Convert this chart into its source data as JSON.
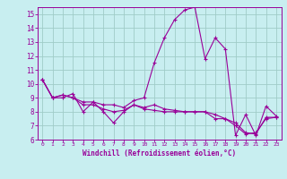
{
  "title": "",
  "xlabel": "Windchill (Refroidissement éolien,°C)",
  "xlim": [
    -0.5,
    23.5
  ],
  "ylim": [
    6,
    15.5
  ],
  "yticks": [
    6,
    7,
    8,
    9,
    10,
    11,
    12,
    13,
    14,
    15
  ],
  "xticks": [
    0,
    1,
    2,
    3,
    4,
    5,
    6,
    7,
    8,
    9,
    10,
    11,
    12,
    13,
    14,
    15,
    16,
    17,
    18,
    19,
    20,
    21,
    22,
    23
  ],
  "bg_color": "#c8eef0",
  "grid_color": "#a0ccc8",
  "line_color": "#990099",
  "series": [
    [
      10.3,
      9.0,
      9.0,
      9.3,
      8.0,
      8.7,
      8.0,
      7.2,
      8.0,
      8.5,
      8.2,
      8.1,
      8.0,
      8.0,
      8.0,
      8.0,
      8.0,
      7.5,
      7.5,
      7.0,
      6.4,
      6.5,
      7.5,
      7.6
    ],
    [
      10.3,
      9.0,
      9.2,
      9.0,
      8.7,
      8.7,
      8.5,
      8.5,
      8.3,
      8.8,
      9.0,
      11.5,
      13.3,
      14.6,
      15.3,
      15.5,
      11.8,
      13.3,
      12.5,
      6.3,
      7.8,
      6.3,
      8.4,
      7.7
    ],
    [
      10.3,
      9.0,
      9.2,
      9.0,
      8.5,
      8.5,
      8.2,
      8.0,
      8.1,
      8.5,
      8.3,
      8.5,
      8.2,
      8.1,
      8.0,
      8.0,
      8.0,
      7.8,
      7.5,
      7.2,
      6.5,
      6.4,
      7.6,
      7.6
    ]
  ]
}
